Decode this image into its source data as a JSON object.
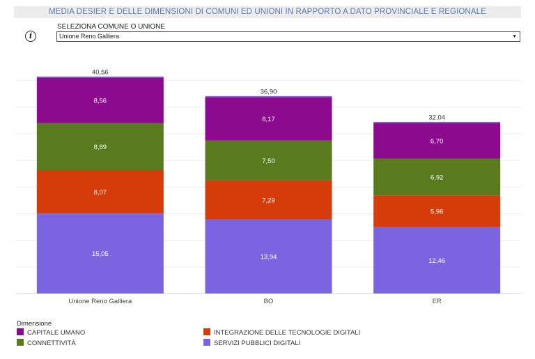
{
  "header": {
    "title": "MEDIA DESIER E DELLE DIMENSIONI DI COMUNI ED UNIONI IN RAPPORTO A DATO PROVINCIALE E REGIONALE"
  },
  "info": {
    "icon": "info-icon",
    "glyph": "i"
  },
  "selector": {
    "label": "SELEZIONA COMUNE O UNIONE",
    "value": "Unione Reno Galliera",
    "caret": "▼"
  },
  "legend": {
    "title": "Dimensione",
    "items": [
      {
        "label": "CAPITALE UMANO",
        "color": "#8b0a8e"
      },
      {
        "label": "INTEGRAZIONE DELLE TECNOLOGIE DIGITALI",
        "color": "#d63c0a"
      },
      {
        "label": "CONNETTIVITÀ",
        "color": "#5a7a1e"
      },
      {
        "label": "SERVIZI PUBBLICI DIGITALI",
        "color": "#7b64e0"
      }
    ]
  },
  "chart_data": {
    "type": "bar",
    "stacked": true,
    "categories": [
      "Unione Reno Galliera",
      "BO",
      "ER"
    ],
    "series": [
      {
        "name": "SERVIZI PUBBLICI DIGITALI",
        "color": "#7b64e0",
        "values": [
          15.05,
          13.94,
          12.46
        ],
        "labels": [
          "15,05",
          "13,94",
          "12,46"
        ]
      },
      {
        "name": "INTEGRAZIONE DELLE TECNOLOGIE DIGITALI",
        "color": "#d63c0a",
        "values": [
          8.07,
          7.29,
          5.96
        ],
        "labels": [
          "8,07",
          "7,29",
          "5,96"
        ]
      },
      {
        "name": "CONNETTIVITÀ",
        "color": "#5a7a1e",
        "values": [
          8.89,
          7.5,
          6.92
        ],
        "labels": [
          "8,89",
          "7,50",
          "6,92"
        ]
      },
      {
        "name": "CAPITALE UMANO",
        "color": "#8b0a8e",
        "values": [
          8.56,
          8.17,
          6.7
        ],
        "labels": [
          "8,56",
          "8,17",
          "6,70"
        ]
      }
    ],
    "totals": [
      40.56,
      36.9,
      32.04
    ],
    "total_labels": [
      "40,56",
      "36,90",
      "32,04"
    ],
    "ylim": [
      0,
      41
    ],
    "grid": true,
    "legend_position": "bottom-left"
  }
}
